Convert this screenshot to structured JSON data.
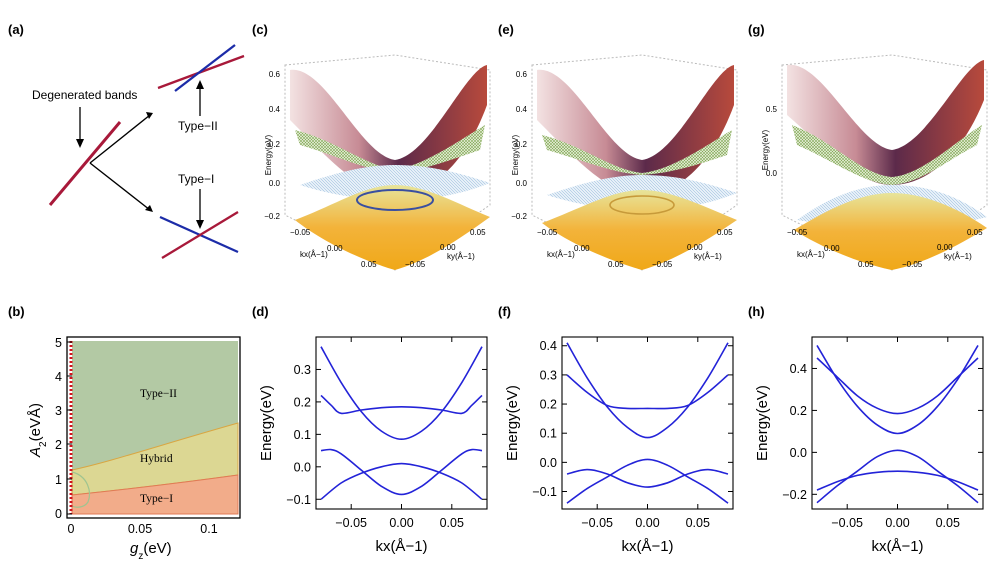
{
  "figure": {
    "panels": [
      "(a)",
      "(b)",
      "(c)",
      "(d)",
      "(e)",
      "(f)",
      "(g)",
      "(h)"
    ],
    "colors": {
      "band_red": "#a8193a",
      "band_blue": "#1c2ca8",
      "curve": "#2323d8",
      "type2_fill": "#b3c9a4",
      "hybrid_fill": "#dcd793",
      "type1_fill": "#f2ac8a",
      "upper_surface": "#9e5d6b",
      "mesh": "#9dba6e",
      "lower_surface": "#f2b43a",
      "flat_surface": "#a9c7e3"
    }
  },
  "panel_a": {
    "degenerated_label": "Degenerated bands",
    "type2_label": "Type−II",
    "type1_label": "Type−I"
  },
  "panel_b": {
    "xlabel": "g",
    "xlabel_sub": "z",
    "xlabel_unit": "(eV)",
    "ylabel": "A",
    "ylabel_sub": "2",
    "ylabel_unit": "(eVÅ)",
    "xticks": [
      "0",
      "0.05",
      "0.1"
    ],
    "yticks": [
      "0",
      "1",
      "2",
      "3",
      "4",
      "5"
    ],
    "regions": [
      "Type−II",
      "Hybrid",
      "Type−I"
    ],
    "chart_data": {
      "type": "area",
      "xlim": [
        0,
        0.12
      ],
      "ylim": [
        0,
        5
      ],
      "regions": [
        {
          "name": "Type−I",
          "upper_boundary_x": [
            0.0,
            0.03,
            0.06,
            0.09,
            0.12
          ],
          "upper_boundary_y": [
            0.55,
            0.75,
            0.92,
            1.06,
            1.18
          ]
        },
        {
          "name": "Hybrid",
          "upper_boundary_x": [
            0.0,
            0.03,
            0.06,
            0.09,
            0.12
          ],
          "upper_boundary_y": [
            1.18,
            1.6,
            1.98,
            2.32,
            2.62
          ]
        },
        {
          "name": "Type−II",
          "upper_boundary_x": [
            0.0,
            0.12
          ],
          "upper_boundary_y": [
            5,
            5
          ]
        }
      ]
    }
  },
  "panels_3d": [
    {
      "id": "c",
      "zlabel": "Energy(eV)",
      "zticks": [
        "0.6",
        "0.4",
        "0.2",
        "0.0",
        "−0.2"
      ],
      "xticks": [
        "−0.05",
        "0.00",
        "0.05"
      ],
      "yticks": [
        "0.05",
        "0.00",
        "−0.05"
      ],
      "xlabel": "kx(Å−1)",
      "ylabel": "ky(Å−1)"
    },
    {
      "id": "e",
      "zlabel": "Energy(eV)",
      "zticks": [
        "0.6",
        "0.4",
        "0.2",
        "0.0",
        "−0.2"
      ],
      "xticks": [
        "−0.05",
        "0.00",
        "0.05"
      ],
      "yticks": [
        "0.05",
        "0.00",
        "−0.05"
      ],
      "xlabel": "kx(Å−1)",
      "ylabel": "ky(Å−1)"
    },
    {
      "id": "g",
      "zlabel": "Energy(eV)",
      "zticks": [
        "0.5",
        "0.0"
      ],
      "xticks": [
        "−0.05",
        "0.00",
        "0.05"
      ],
      "yticks": [
        "0.05",
        "0.00",
        "−0.05"
      ],
      "xlabel": "kx(Å−1)",
      "ylabel": "ky(Å−1)"
    }
  ],
  "chart_data": [
    {
      "id": "d",
      "type": "line",
      "xlabel": "kx(Å−1)",
      "ylabel": "Energy(eV)",
      "xlim": [
        -0.085,
        0.085
      ],
      "ylim": [
        -0.13,
        0.4
      ],
      "xticks": [
        "−0.05",
        "0.00",
        "0.05"
      ],
      "xtick_values": [
        -0.05,
        0.0,
        0.05
      ],
      "yticks": [
        "−0.1",
        "0.0",
        "0.1",
        "0.2",
        "0.3"
      ],
      "ytick_values": [
        -0.1,
        0.0,
        0.1,
        0.2,
        0.3
      ],
      "series": [
        {
          "name": "band1",
          "x": [
            -0.08,
            -0.06,
            -0.04,
            -0.02,
            0.0,
            0.02,
            0.04,
            0.06,
            0.08
          ],
          "y": [
            0.37,
            0.26,
            0.17,
            0.11,
            0.085,
            0.11,
            0.17,
            0.26,
            0.37
          ]
        },
        {
          "name": "band2",
          "x": [
            -0.08,
            -0.07,
            -0.06,
            -0.04,
            -0.02,
            0.0,
            0.02,
            0.04,
            0.06,
            0.07,
            0.08
          ],
          "y": [
            0.22,
            0.19,
            0.165,
            0.175,
            0.182,
            0.185,
            0.182,
            0.175,
            0.165,
            0.19,
            0.22
          ]
        },
        {
          "name": "band3",
          "x": [
            -0.08,
            -0.07,
            -0.06,
            -0.04,
            -0.02,
            0.0,
            0.02,
            0.04,
            0.06,
            0.07,
            0.08
          ],
          "y": [
            0.05,
            0.053,
            0.04,
            -0.01,
            -0.06,
            -0.085,
            -0.06,
            -0.01,
            0.04,
            0.053,
            0.05
          ]
        },
        {
          "name": "band4",
          "x": [
            -0.08,
            -0.06,
            -0.04,
            -0.02,
            0.0,
            0.02,
            0.04,
            0.06,
            0.08
          ],
          "y": [
            -0.1,
            -0.05,
            -0.02,
            0.0,
            0.01,
            0.0,
            -0.02,
            -0.05,
            -0.1
          ]
        }
      ]
    },
    {
      "id": "f",
      "type": "line",
      "xlabel": "kx(Å−1)",
      "ylabel": "Energy(eV)",
      "xlim": [
        -0.085,
        0.085
      ],
      "ylim": [
        -0.16,
        0.43
      ],
      "xticks": [
        "−0.05",
        "0.00",
        "0.05"
      ],
      "xtick_values": [
        -0.05,
        0.0,
        0.05
      ],
      "yticks": [
        "−0.1",
        "0.0",
        "0.1",
        "0.2",
        "0.3",
        "0.4"
      ],
      "ytick_values": [
        -0.1,
        0.0,
        0.1,
        0.2,
        0.3,
        0.4
      ],
      "series": [
        {
          "name": "band1",
          "x": [
            -0.08,
            -0.06,
            -0.04,
            -0.02,
            0.0,
            0.02,
            0.04,
            0.06,
            0.08
          ],
          "y": [
            0.41,
            0.29,
            0.19,
            0.12,
            0.085,
            0.12,
            0.19,
            0.29,
            0.41
          ]
        },
        {
          "name": "band2",
          "x": [
            -0.08,
            -0.06,
            -0.04,
            -0.02,
            0.0,
            0.02,
            0.04,
            0.06,
            0.08
          ],
          "y": [
            0.3,
            0.24,
            0.195,
            0.185,
            0.185,
            0.185,
            0.195,
            0.24,
            0.3
          ]
        },
        {
          "name": "band3",
          "x": [
            -0.08,
            -0.06,
            -0.04,
            -0.02,
            0.0,
            0.02,
            0.04,
            0.06,
            0.08
          ],
          "y": [
            -0.04,
            -0.025,
            -0.04,
            -0.07,
            -0.085,
            -0.07,
            -0.04,
            -0.025,
            -0.04
          ]
        },
        {
          "name": "band4",
          "x": [
            -0.08,
            -0.06,
            -0.04,
            -0.02,
            0.0,
            0.02,
            0.04,
            0.06,
            0.08
          ],
          "y": [
            -0.14,
            -0.09,
            -0.05,
            -0.01,
            0.01,
            -0.01,
            -0.05,
            -0.09,
            -0.14
          ]
        }
      ]
    },
    {
      "id": "h",
      "type": "line",
      "xlabel": "kx(Å−1)",
      "ylabel": "Energy(eV)",
      "xlim": [
        -0.085,
        0.085
      ],
      "ylim": [
        -0.27,
        0.55
      ],
      "xticks": [
        "−0.05",
        "0.00",
        "0.05"
      ],
      "xtick_values": [
        -0.05,
        0.0,
        0.05
      ],
      "yticks": [
        "−0.2",
        "0.0",
        "0.2",
        "0.4"
      ],
      "ytick_values": [
        -0.2,
        0.0,
        0.2,
        0.4
      ],
      "series": [
        {
          "name": "band1",
          "x": [
            -0.08,
            -0.06,
            -0.04,
            -0.02,
            0.0,
            0.02,
            0.04,
            0.06,
            0.08
          ],
          "y": [
            0.51,
            0.35,
            0.22,
            0.13,
            0.09,
            0.13,
            0.22,
            0.35,
            0.51
          ]
        },
        {
          "name": "band2",
          "x": [
            -0.08,
            -0.06,
            -0.04,
            -0.02,
            0.0,
            0.02,
            0.04,
            0.06,
            0.08
          ],
          "y": [
            0.45,
            0.36,
            0.27,
            0.21,
            0.185,
            0.21,
            0.27,
            0.36,
            0.45
          ]
        },
        {
          "name": "band3",
          "x": [
            -0.08,
            -0.06,
            -0.04,
            -0.02,
            0.0,
            0.02,
            0.04,
            0.06,
            0.08
          ],
          "y": [
            -0.18,
            -0.14,
            -0.11,
            -0.095,
            -0.09,
            -0.095,
            -0.11,
            -0.14,
            -0.18
          ]
        },
        {
          "name": "band4",
          "x": [
            -0.08,
            -0.06,
            -0.04,
            -0.02,
            0.0,
            0.02,
            0.04,
            0.06,
            0.08
          ],
          "y": [
            -0.24,
            -0.16,
            -0.09,
            -0.02,
            0.01,
            -0.02,
            -0.09,
            -0.16,
            -0.24
          ]
        }
      ]
    }
  ]
}
